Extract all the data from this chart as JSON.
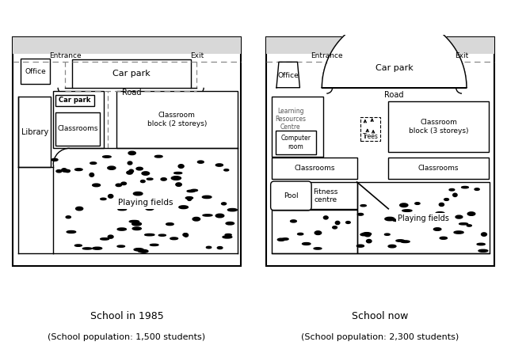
{
  "title_left": "School in 1985",
  "title_right": "School now",
  "subtitle_left": "(School population: 1,500 students)",
  "subtitle_right": "(School population: 2,300 students)",
  "bg_color": "#ffffff"
}
